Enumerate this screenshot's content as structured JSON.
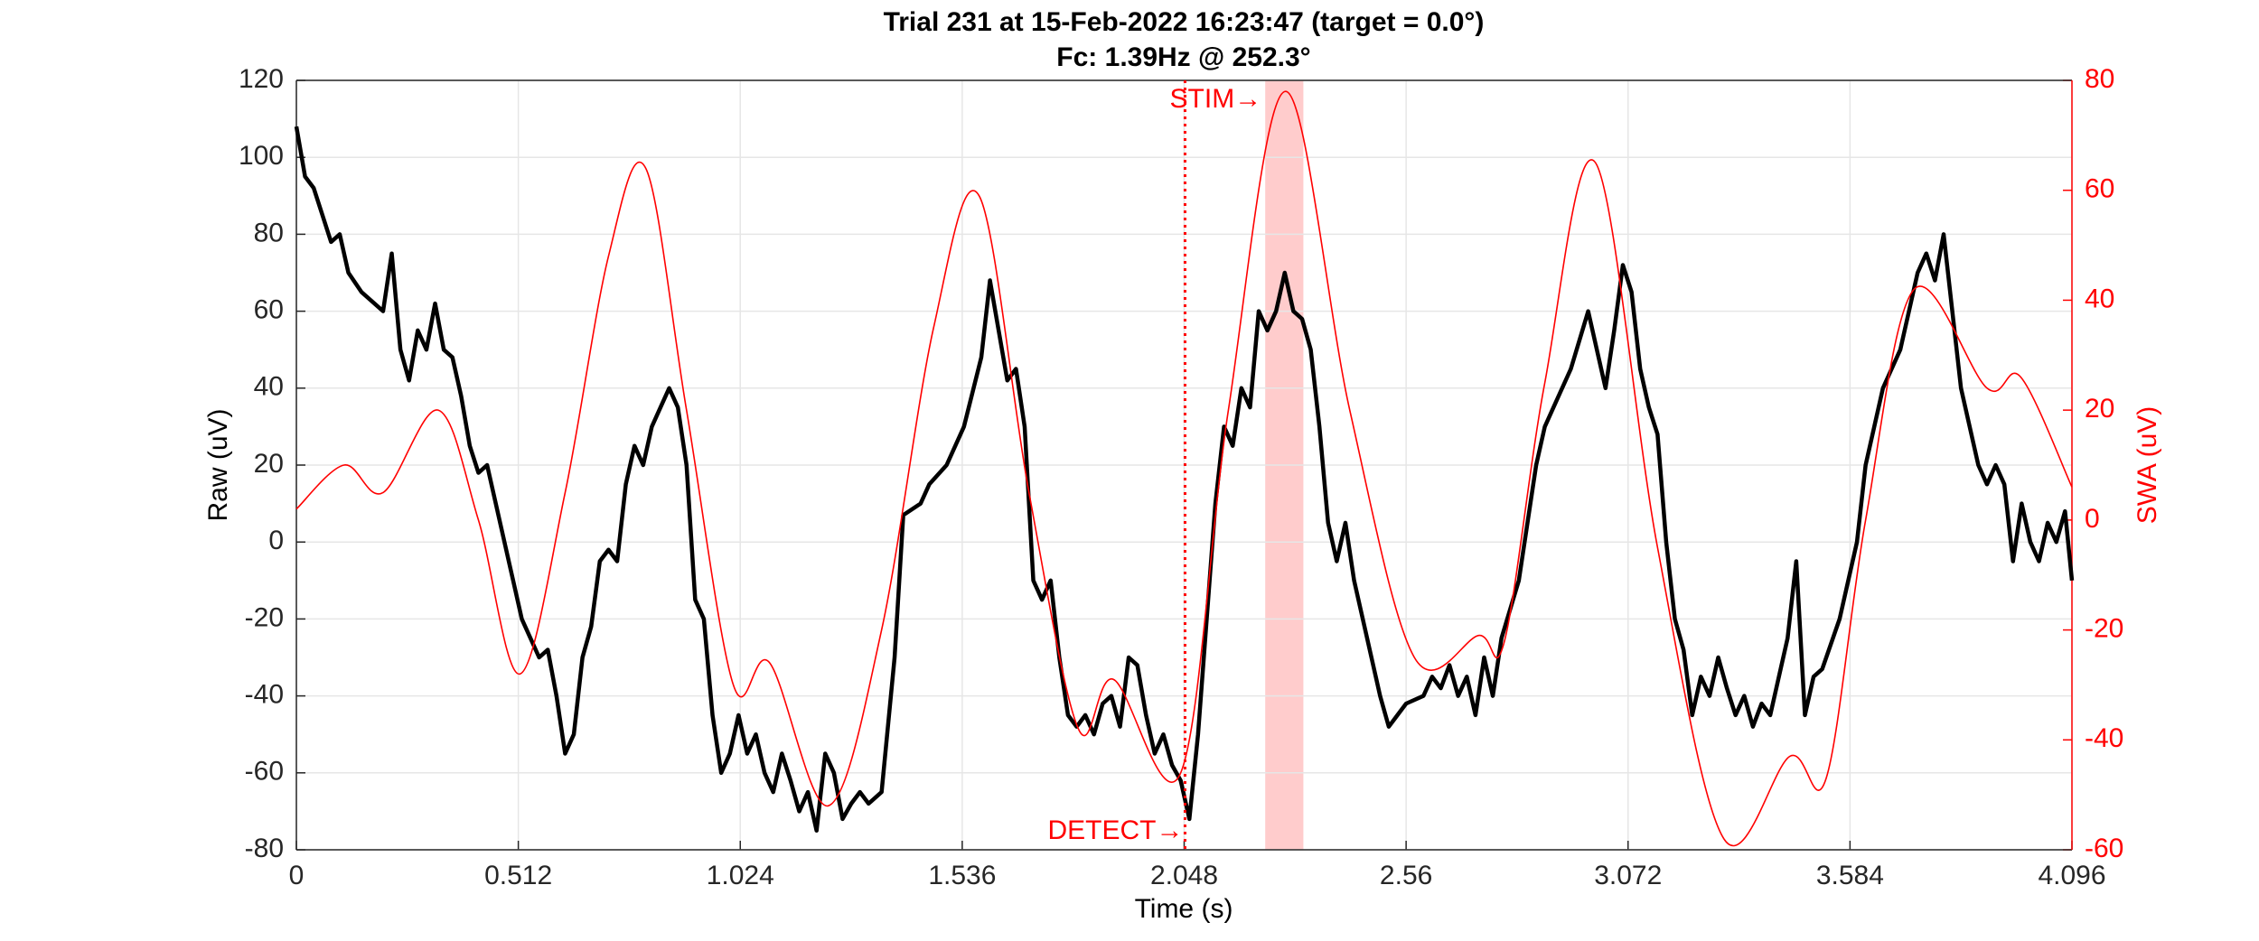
{
  "chart_data": {
    "type": "line",
    "title": "Trial 231 at 15-Feb-2022 16:23:47 (target = 0.0°)",
    "subtitle": "Fc: 1.39Hz @ 252.3°",
    "xlabel": "Time (s)",
    "ylabel": "Raw (uV)",
    "y2label": "SWA (uV)",
    "xlim": [
      0,
      4.096
    ],
    "xticks": [
      0,
      0.512,
      1.024,
      1.536,
      2.048,
      2.56,
      3.072,
      3.584,
      4.096
    ],
    "ylim": [
      -80,
      120
    ],
    "yticks": [
      -80,
      -60,
      -40,
      -20,
      0,
      20,
      40,
      60,
      80,
      100,
      120
    ],
    "y2lim": [
      -60,
      80
    ],
    "y2ticks": [
      -60,
      -40,
      -20,
      0,
      20,
      40,
      60,
      80
    ],
    "grid": true,
    "y2color": "#ff0000",
    "detect": {
      "label": "DETECT→",
      "x": 2.05,
      "color": "#ff0000"
    },
    "stim": {
      "label": "STIM→",
      "x_start": 2.235,
      "x_end": 2.323,
      "color": "#ffcccc"
    },
    "series": [
      {
        "name": "Raw",
        "color": "#000000",
        "axis": "y",
        "x": [
          0,
          0.02,
          0.04,
          0.06,
          0.08,
          0.1,
          0.12,
          0.15,
          0.2,
          0.22,
          0.24,
          0.26,
          0.28,
          0.3,
          0.32,
          0.34,
          0.36,
          0.38,
          0.4,
          0.42,
          0.44,
          0.46,
          0.48,
          0.5,
          0.52,
          0.54,
          0.56,
          0.58,
          0.6,
          0.62,
          0.64,
          0.66,
          0.68,
          0.7,
          0.72,
          0.74,
          0.76,
          0.78,
          0.8,
          0.82,
          0.84,
          0.86,
          0.88,
          0.9,
          0.92,
          0.94,
          0.96,
          0.98,
          1.0,
          1.02,
          1.04,
          1.06,
          1.08,
          1.1,
          1.12,
          1.14,
          1.16,
          1.18,
          1.2,
          1.22,
          1.24,
          1.26,
          1.28,
          1.3,
          1.32,
          1.35,
          1.38,
          1.4,
          1.44,
          1.46,
          1.5,
          1.54,
          1.58,
          1.6,
          1.62,
          1.64,
          1.66,
          1.68,
          1.7,
          1.72,
          1.74,
          1.76,
          1.78,
          1.8,
          1.82,
          1.84,
          1.86,
          1.88,
          1.9,
          1.92,
          1.94,
          1.96,
          1.98,
          2.0,
          2.02,
          2.04,
          2.06,
          2.08,
          2.1,
          2.12,
          2.14,
          2.16,
          2.18,
          2.2,
          2.22,
          2.24,
          2.26,
          2.28,
          2.3,
          2.32,
          2.34,
          2.36,
          2.38,
          2.4,
          2.42,
          2.44,
          2.46,
          2.48,
          2.5,
          2.52,
          2.54,
          2.56,
          2.6,
          2.62,
          2.64,
          2.66,
          2.68,
          2.7,
          2.72,
          2.74,
          2.76,
          2.78,
          2.82,
          2.86,
          2.88,
          2.9,
          2.94,
          2.98,
          3.0,
          3.02,
          3.04,
          3.06,
          3.08,
          3.1,
          3.12,
          3.14,
          3.16,
          3.18,
          3.2,
          3.22,
          3.24,
          3.26,
          3.28,
          3.3,
          3.32,
          3.34,
          3.36,
          3.38,
          3.4,
          3.42,
          3.44,
          3.46,
          3.48,
          3.5,
          3.52,
          3.56,
          3.6,
          3.62,
          3.64,
          3.66,
          3.7,
          3.72,
          3.74,
          3.76,
          3.78,
          3.8,
          3.82,
          3.84,
          3.86,
          3.88,
          3.9,
          3.92,
          3.94,
          3.96,
          3.98,
          4.0,
          4.02,
          4.04,
          4.06,
          4.08,
          4.096
        ],
        "values": [
          108,
          95,
          92,
          85,
          78,
          80,
          70,
          65,
          60,
          75,
          50,
          42,
          55,
          50,
          62,
          50,
          48,
          38,
          25,
          18,
          20,
          10,
          0,
          -10,
          -20,
          -25,
          -30,
          -28,
          -40,
          -55,
          -50,
          -30,
          -22,
          -5,
          -2,
          -5,
          15,
          25,
          20,
          30,
          35,
          40,
          35,
          20,
          -15,
          -20,
          -45,
          -60,
          -55,
          -45,
          -55,
          -50,
          -60,
          -65,
          -55,
          -62,
          -70,
          -65,
          -75,
          -55,
          -60,
          -72,
          -68,
          -65,
          -68,
          -65,
          -30,
          7,
          10,
          15,
          20,
          30,
          48,
          68,
          55,
          42,
          45,
          30,
          -10,
          -15,
          -10,
          -30,
          -45,
          -48,
          -45,
          -50,
          -42,
          -40,
          -48,
          -30,
          -32,
          -45,
          -55,
          -50,
          -58,
          -62,
          -72,
          -50,
          -20,
          10,
          30,
          25,
          40,
          35,
          60,
          55,
          60,
          70,
          60,
          58,
          50,
          30,
          5,
          -5,
          5,
          -10,
          -20,
          -30,
          -40,
          -48,
          -45,
          -42,
          -40,
          -35,
          -38,
          -32,
          -40,
          -35,
          -45,
          -30,
          -40,
          -25,
          -10,
          20,
          30,
          35,
          45,
          60,
          50,
          40,
          55,
          72,
          65,
          45,
          35,
          28,
          0,
          -20,
          -28,
          -45,
          -35,
          -40,
          -30,
          -38,
          -45,
          -40,
          -48,
          -42,
          -45,
          -35,
          -25,
          -5,
          -45,
          -35,
          -33,
          -20,
          0,
          20,
          30,
          40,
          50,
          60,
          70,
          75,
          68,
          80,
          60,
          40,
          30,
          20,
          15,
          20,
          15,
          -5,
          10,
          0,
          -5,
          5,
          0,
          8,
          -10
        ]
      },
      {
        "name": "SWA",
        "color": "#ff0000",
        "axis": "y2",
        "x": [
          0,
          0.11,
          0.2,
          0.327,
          0.42,
          0.516,
          0.62,
          0.72,
          0.806,
          0.9,
          1.008,
          1.092,
          1.227,
          1.35,
          1.47,
          1.575,
          1.69,
          1.804,
          1.885,
          2.04,
          2.15,
          2.282,
          2.43,
          2.579,
          2.727,
          2.787,
          2.88,
          2.997,
          3.14,
          3.293,
          3.445,
          3.529,
          3.62,
          3.732,
          3.9,
          3.978,
          4.096
        ],
        "values": [
          2,
          10,
          5,
          20,
          0,
          -28,
          5,
          48,
          64,
          20,
          -30,
          -26,
          -52,
          -20,
          35,
          59,
          5,
          -38,
          -29,
          -46,
          20,
          78,
          20,
          -25,
          -21,
          -22,
          25,
          65,
          -5,
          -58,
          -43,
          -47,
          0,
          42,
          24,
          26,
          6
        ]
      }
    ]
  }
}
